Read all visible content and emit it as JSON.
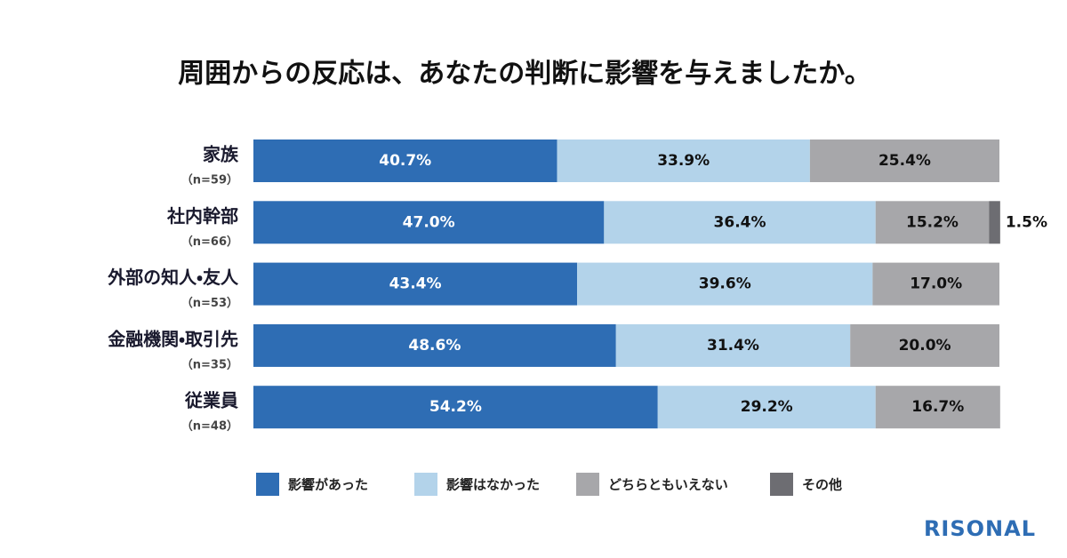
{
  "chart_data": {
    "type": "stacked-bar-horizontal",
    "title": "周囲からの反応は、あなたの判断に影響を与えましたか。",
    "categories": [
      "家族",
      "社内幹部",
      "外部の知人・友人",
      "金融機関・取引先",
      "従業員"
    ],
    "category_notes": [
      "（n=59）",
      "（n=66）",
      "（n=53）",
      "（n=35）",
      "（n=48）"
    ],
    "xlim": [
      0,
      100
    ],
    "series": [
      {
        "name": "影響があった",
        "color": "#2e6db4",
        "values": [
          40.7,
          47.0,
          43.4,
          48.6,
          54.2
        ],
        "value_labels": [
          "40.7%",
          "47.0%",
          "43.4%",
          "48.6%",
          "54.2%"
        ]
      },
      {
        "name": "影響はなかった",
        "color": "#b3d3ea",
        "values": [
          33.9,
          36.4,
          39.6,
          31.4,
          29.2
        ],
        "value_labels": [
          "33.9%",
          "36.4%",
          "39.6%",
          "31.4%",
          "29.2%"
        ]
      },
      {
        "name": "どちらともいえない",
        "color": "#a7a7aa",
        "values": [
          25.4,
          15.2,
          17.0,
          20.0,
          16.7
        ],
        "value_labels": [
          "25.4%",
          "15.2%",
          "17.0%",
          "20.0%",
          "16.7%"
        ]
      },
      {
        "name": "その他",
        "color": "#6d6d72",
        "values": [
          null,
          1.5,
          null,
          null,
          null
        ],
        "value_labels": [
          null,
          "1.5%",
          null,
          null,
          null
        ]
      }
    ],
    "logo": "RISONAL"
  }
}
